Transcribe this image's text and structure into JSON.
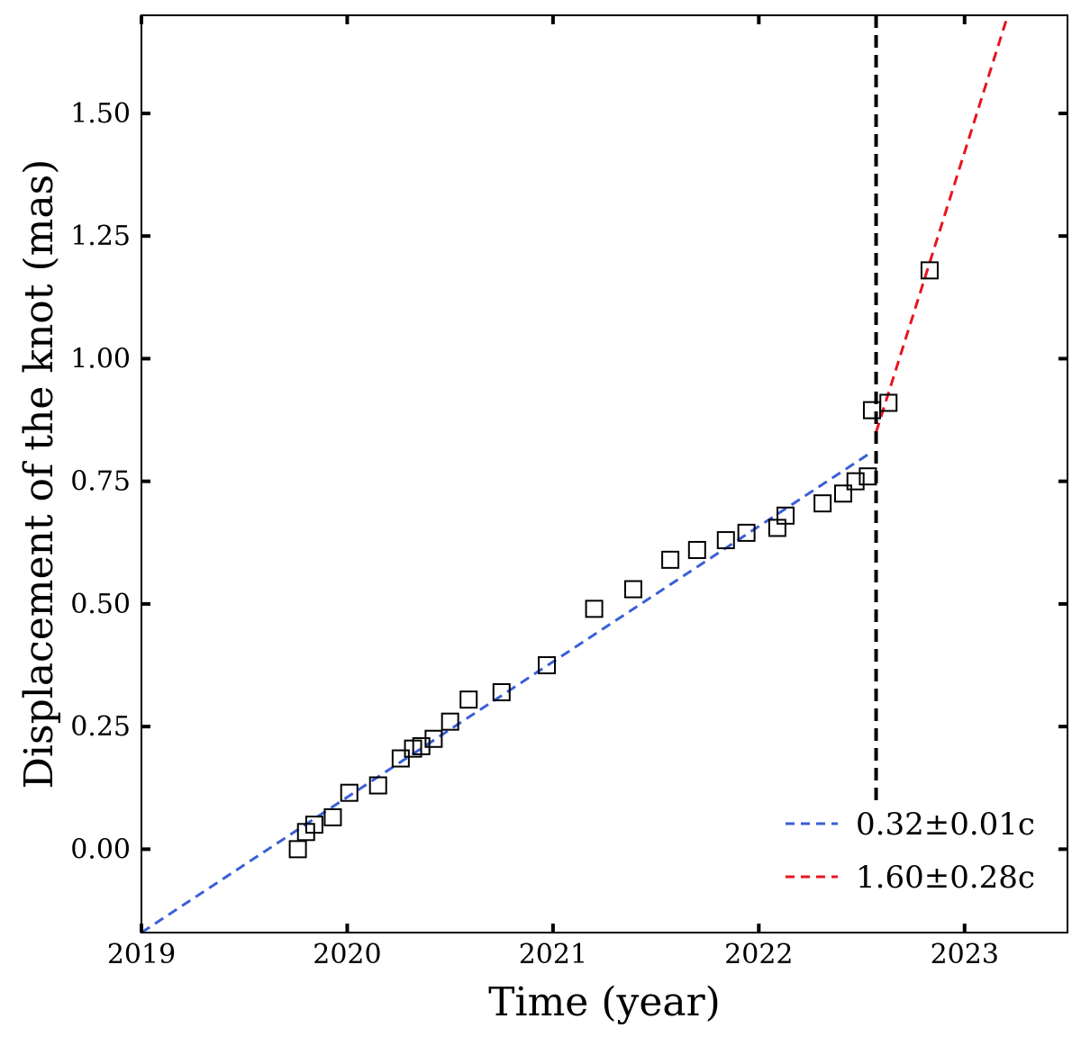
{
  "chart_data": {
    "type": "scatter",
    "xlabel": "Time (year)",
    "ylabel": "Displacement of the knot (mas)",
    "xlim": [
      2019.0,
      2023.5
    ],
    "ylim": [
      -0.17,
      1.7
    ],
    "x_ticks": [
      2019,
      2020,
      2021,
      2022,
      2023
    ],
    "x_tick_labels": [
      "2019",
      "2020",
      "2021",
      "2022",
      "2023"
    ],
    "y_ticks": [
      0.0,
      0.25,
      0.5,
      0.75,
      1.0,
      1.25,
      1.5
    ],
    "y_tick_labels": [
      "0.00",
      "0.25",
      "0.50",
      "0.75",
      "1.00",
      "1.25",
      "1.50"
    ],
    "grid": false,
    "legend_position": "bottom-right",
    "points": [
      {
        "x": 2019.76,
        "y": 0.0
      },
      {
        "x": 2019.8,
        "y": 0.035
      },
      {
        "x": 2019.84,
        "y": 0.05
      },
      {
        "x": 2019.93,
        "y": 0.065
      },
      {
        "x": 2020.01,
        "y": 0.115
      },
      {
        "x": 2020.15,
        "y": 0.13
      },
      {
        "x": 2020.26,
        "y": 0.185
      },
      {
        "x": 2020.32,
        "y": 0.205
      },
      {
        "x": 2020.36,
        "y": 0.21
      },
      {
        "x": 2020.42,
        "y": 0.225
      },
      {
        "x": 2020.5,
        "y": 0.26
      },
      {
        "x": 2020.59,
        "y": 0.305
      },
      {
        "x": 2020.75,
        "y": 0.32
      },
      {
        "x": 2020.97,
        "y": 0.375
      },
      {
        "x": 2021.2,
        "y": 0.49
      },
      {
        "x": 2021.39,
        "y": 0.53
      },
      {
        "x": 2021.57,
        "y": 0.59
      },
      {
        "x": 2021.7,
        "y": 0.61
      },
      {
        "x": 2021.84,
        "y": 0.63
      },
      {
        "x": 2021.94,
        "y": 0.645
      },
      {
        "x": 2022.09,
        "y": 0.655
      },
      {
        "x": 2022.13,
        "y": 0.68
      },
      {
        "x": 2022.31,
        "y": 0.705
      },
      {
        "x": 2022.41,
        "y": 0.725
      },
      {
        "x": 2022.47,
        "y": 0.75
      },
      {
        "x": 2022.53,
        "y": 0.76
      },
      {
        "x": 2022.55,
        "y": 0.895
      },
      {
        "x": 2022.63,
        "y": 0.91
      },
      {
        "x": 2022.83,
        "y": 1.18
      }
    ],
    "series": [
      {
        "name": "0.32±0.01c",
        "color": "#3a5fd9",
        "style": "dashed",
        "x": [
          2019.0,
          2022.55
        ],
        "y": [
          -0.17,
          0.81
        ]
      },
      {
        "name": "1.60±0.28c",
        "color": "#e8141e",
        "style": "dashed",
        "x": [
          2022.57,
          2023.21
        ],
        "y": [
          0.85,
          1.7
        ]
      }
    ],
    "vertical_line": {
      "x": 2022.57,
      "y_range": [
        0.1,
        1.7
      ],
      "color": "#000000",
      "style": "dashed"
    }
  }
}
